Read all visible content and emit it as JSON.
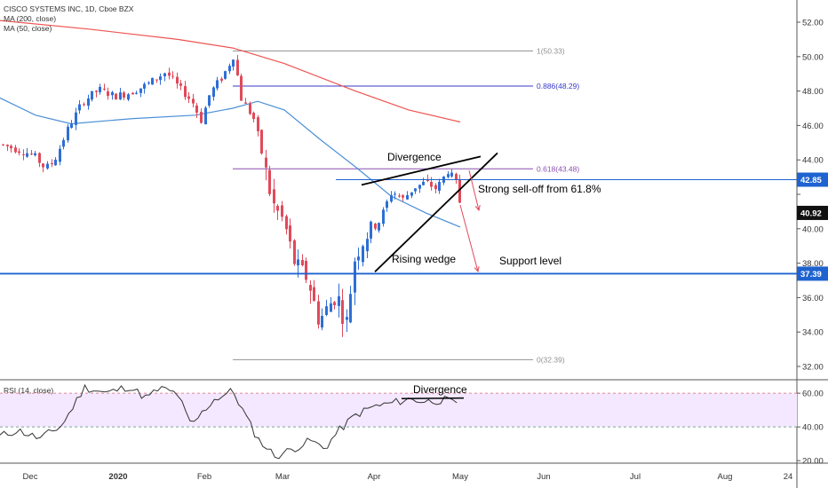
{
  "legend": {
    "symbol_line": "CISCO SYSTEMS INC, 1D, Cboe BZX",
    "ma200": "MA (200, close)",
    "ma50": "MA (50, close)",
    "rsi": "RSI (14, close)"
  },
  "colors": {
    "up": "#2e6fd6",
    "down": "#e04a5a",
    "ma200": "#ef5350",
    "ma50": "#4a8fd8",
    "support": "#1e63d0",
    "fib": "#909090",
    "fib886": "#3838c8",
    "fib618": "#8a4fb0",
    "rsi_band": "#f3e8ff",
    "rsi_line": "#333333",
    "arrow": "#e04a5a"
  },
  "annotations": {
    "divergence": "Divergence",
    "selloff": "Strong sell-off from 61.8%",
    "wedge": "Rising wedge",
    "support": "Support level",
    "rsi_divergence": "Divergence"
  },
  "chart_data": [
    {
      "type": "candlestick",
      "title": "CISCO SYSTEMS INC, 1D, Cboe BZX",
      "x_labels": [
        "Dec",
        "2020",
        "Feb",
        "Mar",
        "Apr",
        "May",
        "Jun",
        "Jul",
        "Aug",
        "24"
      ],
      "ylim": [
        31.3,
        53.0
      ],
      "y_ticks": [
        32.0,
        34.0,
        36.0,
        38.0,
        40.0,
        42.0,
        44.0,
        46.0,
        48.0,
        50.0,
        52.0
      ],
      "y_tick_labels": [
        "32.00",
        "34.00",
        "36.00",
        "38.00",
        "40.00",
        "",
        "44.00",
        "46.00",
        "48.00",
        "50.00",
        "52.00"
      ],
      "price_tags": [
        {
          "value": 42.85,
          "label": "42.85",
          "color": "#1e63d0"
        },
        {
          "value": 40.92,
          "label": "40.92",
          "color": "#111111"
        },
        {
          "value": 37.39,
          "label": "37.39",
          "color": "#1e63d0"
        }
      ],
      "fibonacci": [
        {
          "level": "1",
          "price": 50.33,
          "label": "1(50.33)"
        },
        {
          "level": "0.886",
          "price": 48.29,
          "label": "0.886(48.29)"
        },
        {
          "level": "0.618",
          "price": 43.48,
          "label": "0.618(43.48)"
        },
        {
          "level": "0",
          "price": 32.39,
          "label": "0(32.39)"
        }
      ],
      "support_level": 37.39,
      "grid": false
    },
    {
      "type": "line",
      "title": "RSI (14, close)",
      "ylim": [
        20,
        70
      ],
      "y_ticks": [
        20.0,
        40.0,
        60.0
      ],
      "y_tick_labels": [
        "20.00",
        "40.00",
        "60.00"
      ],
      "overbought": 60,
      "oversold": 40
    }
  ]
}
